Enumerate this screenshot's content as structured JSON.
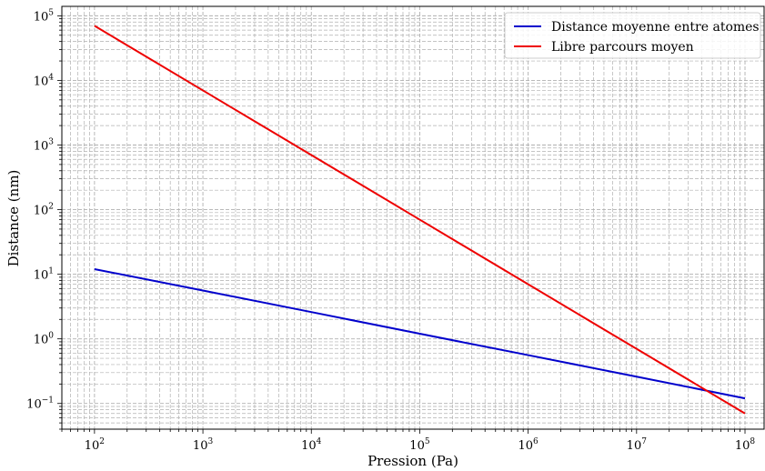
{
  "chart_data": {
    "type": "line",
    "title": "",
    "xlabel": "Pression (Pa)",
    "ylabel": "Distance (nm)",
    "xscale": "log",
    "yscale": "log",
    "xlim": [
      50,
      150000000
    ],
    "ylim": [
      0.04,
      140000
    ],
    "grid": "on (major and minor, dashed)",
    "legend": "top-right",
    "x_ticks": [
      {
        "value": 100,
        "base": "10",
        "exp": "2"
      },
      {
        "value": 1000,
        "base": "10",
        "exp": "3"
      },
      {
        "value": 10000,
        "base": "10",
        "exp": "4"
      },
      {
        "value": 100000,
        "base": "10",
        "exp": "5"
      },
      {
        "value": 1000000,
        "base": "10",
        "exp": "6"
      },
      {
        "value": 10000000,
        "base": "10",
        "exp": "7"
      },
      {
        "value": 100000000,
        "base": "10",
        "exp": "8"
      }
    ],
    "y_ticks": [
      {
        "value": 0.1,
        "base": "10",
        "exp": "−1"
      },
      {
        "value": 1,
        "base": "10",
        "exp": "0"
      },
      {
        "value": 10,
        "base": "10",
        "exp": "1"
      },
      {
        "value": 100,
        "base": "10",
        "exp": "2"
      },
      {
        "value": 1000,
        "base": "10",
        "exp": "3"
      },
      {
        "value": 10000,
        "base": "10",
        "exp": "4"
      },
      {
        "value": 100000,
        "base": "10",
        "exp": "5"
      }
    ],
    "series": [
      {
        "name": "Distance moyenne entre atomes",
        "color": "#0000cc",
        "x": [
          100,
          1000,
          10000,
          100000,
          1000000,
          10000000,
          100000000
        ],
        "values": [
          12,
          5.6,
          2.6,
          1.2,
          0.56,
          0.26,
          0.12
        ]
      },
      {
        "name": "Libre parcours moyen",
        "color": "#ee0000",
        "x": [
          100,
          1000,
          10000,
          100000,
          1000000,
          10000000,
          100000000
        ],
        "values": [
          70000,
          7000,
          700,
          70,
          7,
          0.7,
          0.07
        ]
      }
    ]
  }
}
